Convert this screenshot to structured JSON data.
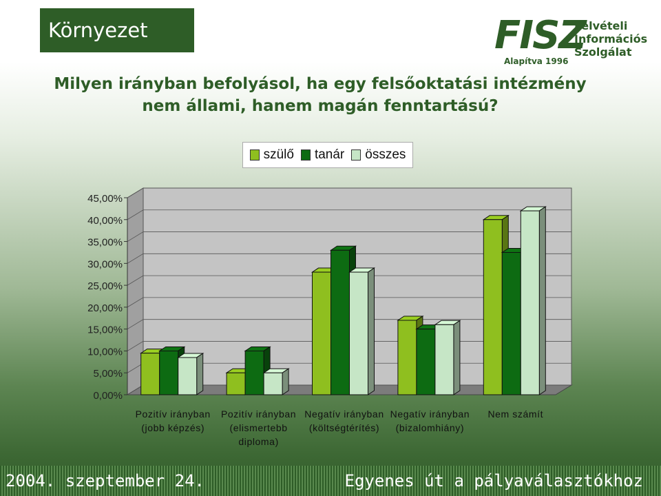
{
  "header": {
    "section": "Környezet"
  },
  "logo": {
    "name": "FISZ",
    "line1": "Felvételi",
    "line2": "Információs",
    "line3": "Szolgálat",
    "founded": "Alapítva 1996"
  },
  "chart_data": {
    "type": "bar",
    "title": "Milyen irányban befolyásol, ha egy felsőoktatási intézmény nem állami, hanem magán fenntartású?",
    "title_lines": [
      "Milyen irányban befolyásol, ha egy felsőoktatási intézmény",
      "nem állami, hanem magán fenntartású?"
    ],
    "categories": [
      [
        "Pozitív irányban",
        "(jobb képzés)"
      ],
      [
        "Pozitív irányban",
        "(elismertebb",
        "diploma)"
      ],
      [
        "Negatív irányban",
        "(költségtérítés)"
      ],
      [
        "Negatív irányban",
        "(bizalomhiány)"
      ],
      [
        "Nem számít"
      ]
    ],
    "series": [
      {
        "name": "szülő",
        "color": "#8fbf1f",
        "values": [
          9.5,
          5.0,
          28.0,
          17.0,
          40.0
        ]
      },
      {
        "name": "tanár",
        "color": "#0d6b12",
        "values": [
          10.0,
          10.0,
          33.0,
          15.0,
          32.5
        ]
      },
      {
        "name": "összes",
        "color": "#c6e6c6",
        "values": [
          8.5,
          5.0,
          28.0,
          16.0,
          42.0
        ]
      }
    ],
    "ylim": [
      0,
      45
    ],
    "yticks": [
      "0,00%",
      "5,00%",
      "10,00%",
      "15,00%",
      "20,00%",
      "25,00%",
      "30,00%",
      "35,00%",
      "40,00%",
      "45,00%"
    ],
    "legend_position": "top"
  },
  "footer": {
    "date": "2004. szeptember 24.",
    "slogan": "Egyenes út a pályaválasztókhoz"
  }
}
